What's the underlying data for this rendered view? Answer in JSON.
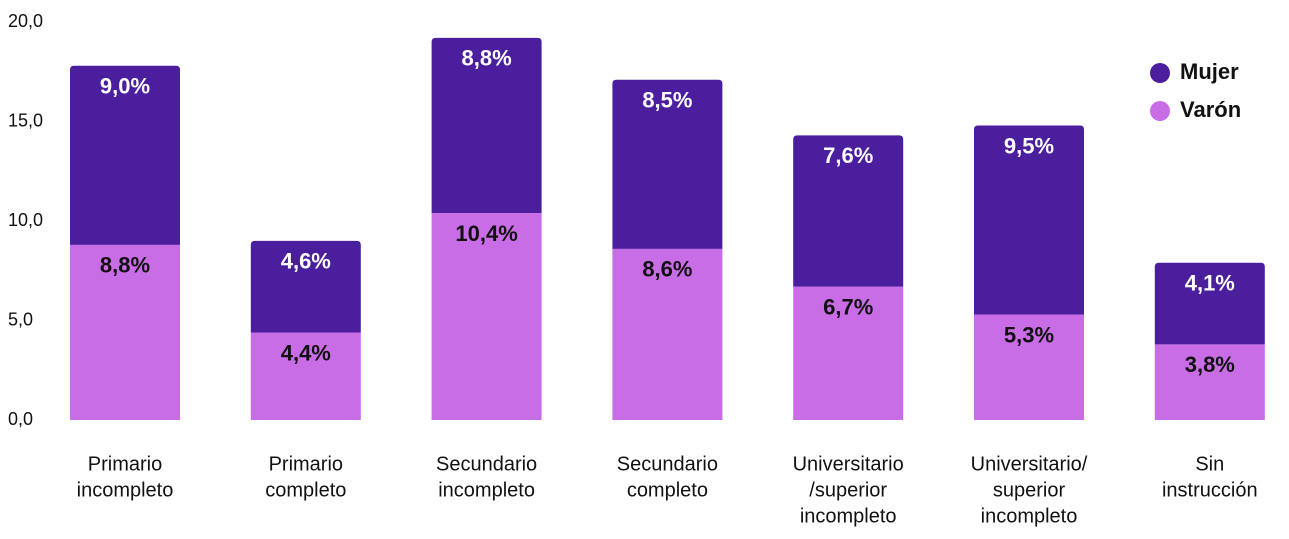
{
  "chart_data": {
    "type": "stacked_bar",
    "categories": [
      [
        "Primario",
        "incompleto"
      ],
      [
        "Primario",
        "completo"
      ],
      [
        "Secundario",
        "incompleto"
      ],
      [
        "Secundario",
        "completo"
      ],
      [
        "Universitario",
        "/superior",
        "incompleto"
      ],
      [
        "Universitario/",
        "superior",
        "incompleto"
      ],
      [
        "Sin",
        "instrucción"
      ]
    ],
    "series": [
      {
        "name": "Varón",
        "color": "#c86de6",
        "values": [
          8.8,
          4.4,
          10.4,
          8.6,
          6.7,
          5.3,
          3.8
        ],
        "value_labels": [
          "8,8%",
          "4,4%",
          "10,4%",
          "8,6%",
          "6,7%",
          "5,3%",
          "3,8%"
        ]
      },
      {
        "name": "Mujer",
        "color": "#4b1e9e",
        "values": [
          9.0,
          4.6,
          8.8,
          8.5,
          7.6,
          9.5,
          4.1
        ],
        "value_labels": [
          "9,0%",
          "4,6%",
          "8,8%",
          "8,5%",
          "7,6%",
          "9,5%",
          "4,1%"
        ]
      }
    ],
    "ylim": [
      0,
      20
    ],
    "yticks": [
      {
        "value": 0,
        "label": "0,0"
      },
      {
        "value": 5,
        "label": "5,0"
      },
      {
        "value": 10,
        "label": "10,0"
      },
      {
        "value": 15,
        "label": "15,0"
      },
      {
        "value": 20,
        "label": "20,0"
      }
    ],
    "legend": "upper right"
  }
}
